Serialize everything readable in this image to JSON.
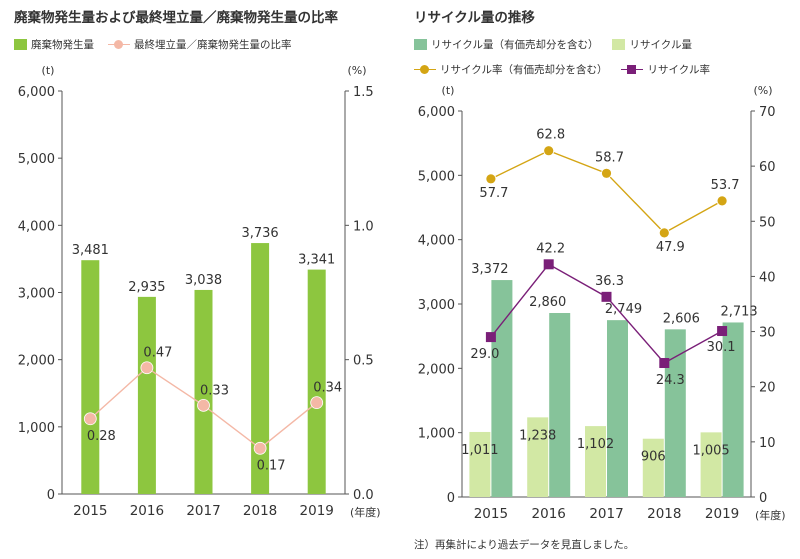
{
  "chart_data": [
    {
      "type": "bar",
      "title": "廃棄物発生量および最終埋立量／廃棄物発生量の比率",
      "y_unit": "(t)",
      "y2_unit": "(%)",
      "x_unit": "(年度)",
      "categories": [
        "2015",
        "2016",
        "2017",
        "2018",
        "2019"
      ],
      "ylim": [
        0,
        6000
      ],
      "yticks": [
        "0",
        "1,000",
        "2,000",
        "3,000",
        "4,000",
        "5,000",
        "6,000"
      ],
      "y2lim": [
        0,
        1.5
      ],
      "y2ticks": [
        "0.0",
        "0.5",
        "1.0",
        "1.5"
      ],
      "series": [
        {
          "name": "廃棄物発生量",
          "type": "bar",
          "axis": "left",
          "color": "#8dc63f",
          "values": [
            3481,
            2935,
            3038,
            3736,
            3341
          ],
          "labels": [
            "3,481",
            "2,935",
            "3,038",
            "3,736",
            "3,341"
          ]
        },
        {
          "name": "最終埋立量／廃棄物発生量の比率",
          "type": "line",
          "axis": "right",
          "color": "#f4b8a6",
          "values": [
            0.28,
            0.47,
            0.33,
            0.17,
            0.34
          ],
          "labels": [
            "0.28",
            "0.47",
            "0.33",
            "0.17",
            "0.34"
          ]
        }
      ]
    },
    {
      "type": "bar",
      "title": "リサイクル量の推移",
      "y_unit": "(t)",
      "y2_unit": "(%)",
      "x_unit": "(年度)",
      "categories": [
        "2015",
        "2016",
        "2017",
        "2018",
        "2019"
      ],
      "ylim": [
        0,
        6000
      ],
      "yticks": [
        "0",
        "1,000",
        "2,000",
        "3,000",
        "4,000",
        "5,000",
        "6,000"
      ],
      "y2lim": [
        0,
        70
      ],
      "y2ticks": [
        "0",
        "10",
        "20",
        "30",
        "40",
        "50",
        "60",
        "70"
      ],
      "series": [
        {
          "name": "リサイクル量（有価売却分を含む）",
          "type": "bar",
          "axis": "left",
          "color": "#86c39a",
          "values": [
            3372,
            2860,
            2749,
            2606,
            2713
          ],
          "labels": [
            "3,372",
            "2,860",
            "2,749",
            "2,606",
            "2,713"
          ]
        },
        {
          "name": "リサイクル量",
          "type": "bar",
          "axis": "left",
          "color": "#d2e8a4",
          "values": [
            1011,
            1238,
            1102,
            906,
            1005
          ],
          "labels": [
            "1,011",
            "1,238",
            "1,102",
            "906",
            "1,005"
          ]
        },
        {
          "name": "リサイクル率（有価売却分を含む）",
          "type": "line",
          "axis": "right",
          "color": "#d4a514",
          "values": [
            57.7,
            62.8,
            58.7,
            47.9,
            53.7
          ],
          "labels": [
            "57.7",
            "62.8",
            "58.7",
            "47.9",
            "53.7"
          ]
        },
        {
          "name": "リサイクル率",
          "type": "line",
          "axis": "right",
          "color": "#7a1f78",
          "values": [
            29.0,
            42.2,
            36.3,
            24.3,
            30.1
          ],
          "labels": [
            "29.0",
            "42.2",
            "36.3",
            "24.3",
            "30.1"
          ]
        }
      ]
    }
  ],
  "note": "注）再集計により過去データを見直しました。"
}
